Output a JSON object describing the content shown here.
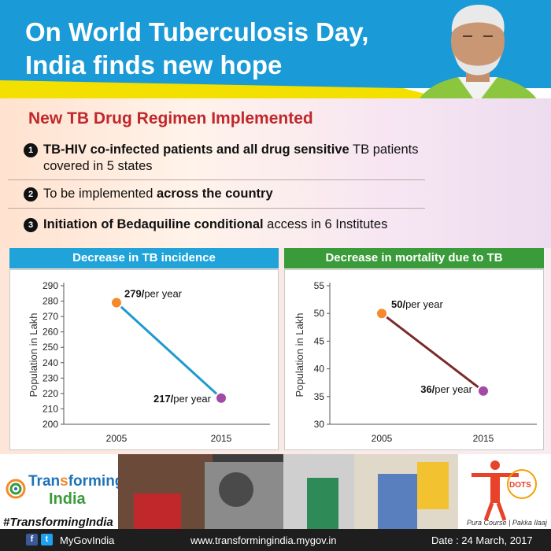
{
  "header": {
    "title_line1": "On World Tuberculosis Day,",
    "title_line2": "India finds new hope"
  },
  "content": {
    "subhead": "New TB Drug Regimen Implemented",
    "bullets": [
      {
        "num": "1",
        "bold": "TB-HIV co-infected patients and all drug sensitive",
        "rest": " TB patients covered in 5 states"
      },
      {
        "num": "2",
        "pre": "To be implemented ",
        "bold": "across the country"
      },
      {
        "num": "3",
        "bold": "Initiation of Bedaquiline conditional",
        "rest": " access in 6 Institutes"
      }
    ]
  },
  "chart_data": [
    {
      "type": "line",
      "title": "Decrease in TB incidence",
      "ylabel": "Population in Lakh",
      "x": [
        "2005",
        "2015"
      ],
      "values": [
        279,
        217
      ],
      "ylim": [
        200,
        290
      ],
      "yticks": [
        290,
        280,
        270,
        260,
        250,
        240,
        230,
        220,
        210,
        200
      ],
      "labels": [
        {
          "bold": "279/",
          "text": "per year"
        },
        {
          "bold": "217/",
          "text": "per year"
        }
      ],
      "header_color": "#1fa3d9",
      "line_color": "#1f9ad0",
      "point_colors": [
        "#f58a2c",
        "#a24aa5"
      ]
    },
    {
      "type": "line",
      "title": "Decrease in mortality due to TB",
      "ylabel": "Population in Lakh",
      "x": [
        "2005",
        "2015"
      ],
      "values": [
        50,
        36
      ],
      "ylim": [
        30,
        55
      ],
      "yticks": [
        55,
        50,
        45,
        40,
        35,
        30
      ],
      "labels": [
        {
          "bold": "50/",
          "text": "per year"
        },
        {
          "bold": "36/",
          "text": "per year"
        }
      ],
      "header_color": "#3a9b3a",
      "line_color": "#7a2b2b",
      "point_colors": [
        "#f58a2c",
        "#a24aa5"
      ]
    }
  ],
  "footer": {
    "logo_line1": "Tran",
    "logo_line1b": "forming",
    "logo_line2": "India",
    "hashtag": "#TransformingIndia",
    "social": "MyGovIndia",
    "url": "www.transformingindia.mygov.in",
    "date": "Date : 24 March, 2017",
    "dots_label": "DOTS",
    "dots_tagline": "Pura Course | Pakka Ilaaj"
  },
  "colors": {
    "header_blue": "#1a9ad6",
    "band_yellow": "#f4e000",
    "subhead_red": "#c0282c"
  }
}
